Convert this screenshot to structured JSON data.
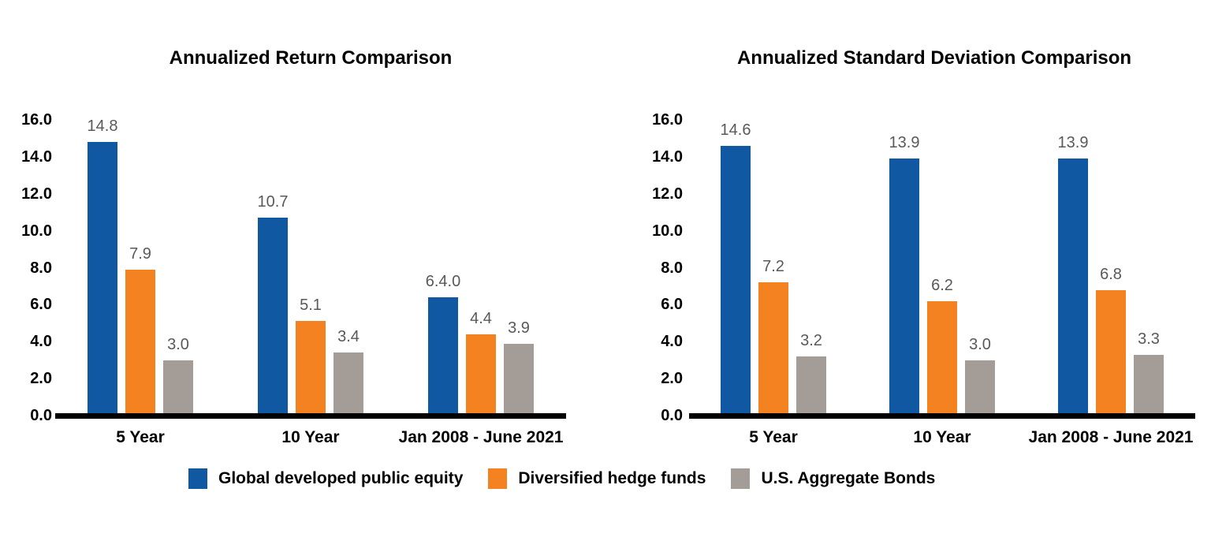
{
  "page": {
    "background": "#ffffff"
  },
  "colors": {
    "equity_blue": "#1158A3",
    "hedge_orange": "#F58220",
    "bonds_gray": "#A49D97",
    "data_label_gray": "#595959",
    "axis_black": "#000000"
  },
  "chart_data": [
    {
      "type": "bar",
      "title": "Annualized Return Comparison",
      "categories": [
        "5 Year",
        "10 Year",
        "Jan 2008 - June 2021"
      ],
      "series": [
        {
          "name": "Global developed public equity",
          "color": "#1158A3",
          "values": [
            14.8,
            10.7,
            6.4
          ],
          "labels": [
            "14.8",
            "10.7",
            "6.4.0"
          ]
        },
        {
          "name": "Diversified hedge funds",
          "color": "#F58220",
          "values": [
            7.9,
            5.1,
            4.4
          ],
          "labels": [
            "7.9",
            "5.1",
            "4.4"
          ]
        },
        {
          "name": "U.S. Aggregate Bonds",
          "color": "#A49D97",
          "values": [
            3.0,
            3.4,
            3.9
          ],
          "labels": [
            "3.0",
            "3.4",
            "3.9"
          ]
        }
      ],
      "y_axis": {
        "min": 0,
        "max": 16,
        "ticks": [
          "16.0",
          "14.0",
          "12.0",
          "10.0",
          "8.0",
          "6.0",
          "4.0",
          "2.0",
          "0.0"
        ]
      },
      "grid": false,
      "legend_position": "bottom-shared"
    },
    {
      "type": "bar",
      "title": "Annualized Standard Deviation Comparison",
      "categories": [
        "5 Year",
        "10 Year",
        "Jan 2008 - June 2021"
      ],
      "series": [
        {
          "name": "Global developed public equity",
          "color": "#1158A3",
          "values": [
            14.6,
            13.9,
            13.9
          ],
          "labels": [
            "14.6",
            "13.9",
            "13.9"
          ]
        },
        {
          "name": "Diversified hedge funds",
          "color": "#F58220",
          "values": [
            7.2,
            6.2,
            6.8
          ],
          "labels": [
            "7.2",
            "6.2",
            "6.8"
          ]
        },
        {
          "name": "U.S. Aggregate Bonds",
          "color": "#A49D97",
          "values": [
            3.2,
            3.0,
            3.3
          ],
          "labels": [
            "3.2",
            "3.0",
            "3.3"
          ]
        }
      ],
      "y_axis": {
        "min": 0,
        "max": 16,
        "ticks": [
          "16.0",
          "14.0",
          "12.0",
          "10.0",
          "8.0",
          "6.0",
          "4.0",
          "2.0",
          "0.0"
        ]
      },
      "grid": false,
      "legend_position": "bottom-shared"
    }
  ],
  "legend": {
    "items": [
      {
        "label": "Global developed public equity",
        "color": "#1158A3"
      },
      {
        "label": "Diversified hedge funds",
        "color": "#F58220"
      },
      {
        "label": "U.S. Aggregate Bonds",
        "color": "#A49D97"
      }
    ]
  }
}
